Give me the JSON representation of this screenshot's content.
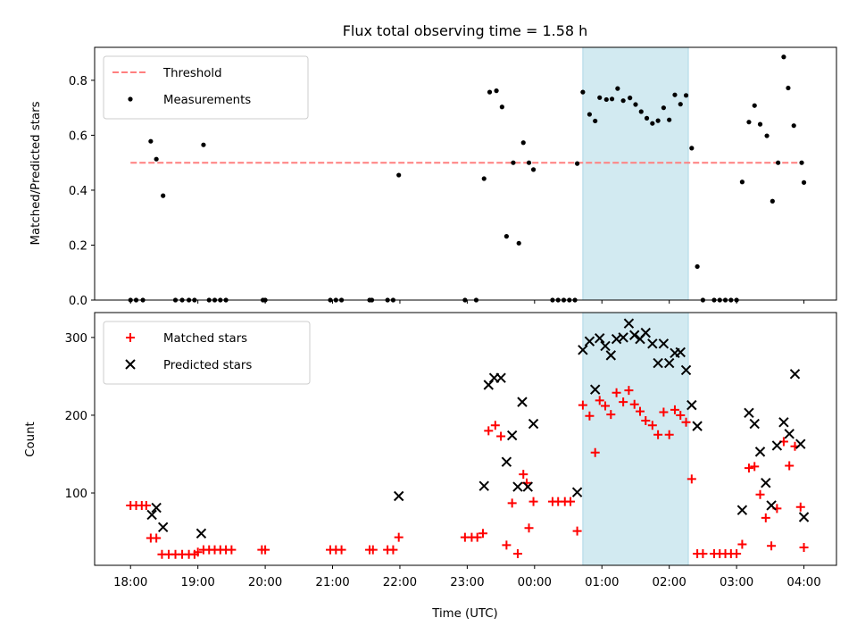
{
  "chart_data": [
    {
      "type": "scatter",
      "title": "Flux total observing time = 1.58 h",
      "xlabel": "",
      "ylabel": "Matched/Predicted stars",
      "ylim": [
        0,
        0.92
      ],
      "yticks": [
        "0.0",
        "0.2",
        "0.4",
        "0.6",
        "0.8"
      ],
      "ytick_values": [
        0,
        0.2,
        0.4,
        0.6,
        0.8
      ],
      "legend_position": "upper-left",
      "shaded_interval": [
        "00:43",
        "02:17"
      ],
      "shade_color": "#add8e6",
      "threshold": {
        "name": "Threshold",
        "value": 0.5,
        "x_start": "18:00",
        "x_end": "04:00",
        "color": "#ff7f7f",
        "style": "dashed"
      },
      "series": [
        {
          "name": "Measurements",
          "marker": "dot",
          "color": "#000000",
          "points": [
            [
              "18:00",
              0
            ],
            [
              "18:05",
              0
            ],
            [
              "18:11",
              0
            ],
            [
              "18:18",
              0.578
            ],
            [
              "18:23",
              0.513
            ],
            [
              "18:29",
              0.38
            ],
            [
              "18:40",
              0
            ],
            [
              "18:46",
              0
            ],
            [
              "18:52",
              0
            ],
            [
              "18:57",
              0
            ],
            [
              "19:05",
              0.565
            ],
            [
              "19:10",
              0
            ],
            [
              "19:15",
              0
            ],
            [
              "19:20",
              0
            ],
            [
              "19:25",
              0
            ],
            [
              "19:58",
              0
            ],
            [
              "20:00",
              0
            ],
            [
              "20:58",
              0
            ],
            [
              "21:03",
              0
            ],
            [
              "21:08",
              0
            ],
            [
              "21:33",
              0
            ],
            [
              "21:35",
              0
            ],
            [
              "21:49",
              0
            ],
            [
              "21:54",
              0
            ],
            [
              "21:59",
              0.455
            ],
            [
              "22:58",
              0
            ],
            [
              "23:08",
              0
            ],
            [
              "23:15",
              0.442
            ],
            [
              "23:20",
              0.757
            ],
            [
              "23:26",
              0.762
            ],
            [
              "23:31",
              0.703
            ],
            [
              "23:35",
              0.232
            ],
            [
              "23:41",
              0.5
            ],
            [
              "23:46",
              0.207
            ],
            [
              "23:50",
              0.573
            ],
            [
              "23:55",
              0.5
            ],
            [
              "23:59",
              0.475
            ],
            [
              "00:16",
              0
            ],
            [
              "00:21",
              0
            ],
            [
              "00:26",
              0
            ],
            [
              "00:31",
              0
            ],
            [
              "00:36",
              0
            ],
            [
              "00:38",
              0.497
            ],
            [
              "00:43",
              0.757
            ],
            [
              "00:49",
              0.676
            ],
            [
              "00:54",
              0.652
            ],
            [
              "00:58",
              0.737
            ],
            [
              "01:04",
              0.73
            ],
            [
              "01:09",
              0.732
            ],
            [
              "01:14",
              0.77
            ],
            [
              "01:19",
              0.726
            ],
            [
              "01:25",
              0.736
            ],
            [
              "01:30",
              0.712
            ],
            [
              "01:35",
              0.686
            ],
            [
              "01:40",
              0.662
            ],
            [
              "01:45",
              0.643
            ],
            [
              "01:50",
              0.653
            ],
            [
              "01:55",
              0.7
            ],
            [
              "02:00",
              0.656
            ],
            [
              "02:05",
              0.747
            ],
            [
              "02:10",
              0.713
            ],
            [
              "02:15",
              0.745
            ],
            [
              "02:20",
              0.553
            ],
            [
              "02:25",
              0.122
            ],
            [
              "02:30",
              0
            ],
            [
              "02:40",
              0
            ],
            [
              "02:45",
              0
            ],
            [
              "02:50",
              0
            ],
            [
              "02:55",
              0
            ],
            [
              "03:00",
              0
            ],
            [
              "03:05",
              0.43
            ],
            [
              "03:11",
              0.648
            ],
            [
              "03:16",
              0.708
            ],
            [
              "03:21",
              0.64
            ],
            [
              "03:27",
              0.598
            ],
            [
              "03:32",
              0.36
            ],
            [
              "03:37",
              0.5
            ],
            [
              "03:42",
              0.885
            ],
            [
              "03:46",
              0.772
            ],
            [
              "03:51",
              0.635
            ],
            [
              "03:58",
              0.5
            ],
            [
              "04:00",
              0.428
            ]
          ]
        }
      ]
    },
    {
      "type": "scatter",
      "title": "",
      "xlabel": "Time (UTC)",
      "ylabel": "Count",
      "ylim": [
        7,
        332
      ],
      "yticks": [
        "100",
        "200",
        "300"
      ],
      "ytick_values": [
        100,
        200,
        300
      ],
      "xlim": [
        "17:28",
        "04:29"
      ],
      "xticks": [
        "18:00",
        "19:00",
        "20:00",
        "21:00",
        "22:00",
        "23:00",
        "00:00",
        "01:00",
        "02:00",
        "03:00",
        "04:00"
      ],
      "legend_position": "upper-left",
      "shaded_interval": [
        "00:43",
        "02:17"
      ],
      "shade_color": "#add8e6",
      "series": [
        {
          "name": "Matched stars",
          "marker": "plus",
          "color": "#ff0000",
          "points": [
            [
              "18:00",
              84
            ],
            [
              "18:05",
              84
            ],
            [
              "18:10",
              84
            ],
            [
              "18:14",
              84
            ],
            [
              "18:18",
              42
            ],
            [
              "18:23",
              42
            ],
            [
              "18:28",
              21
            ],
            [
              "18:34",
              21
            ],
            [
              "18:40",
              21
            ],
            [
              "18:46",
              21
            ],
            [
              "18:52",
              21
            ],
            [
              "18:57",
              21
            ],
            [
              "19:00",
              24
            ],
            [
              "19:05",
              27
            ],
            [
              "19:10",
              27
            ],
            [
              "19:15",
              27
            ],
            [
              "19:20",
              27
            ],
            [
              "19:25",
              27
            ],
            [
              "19:30",
              27
            ],
            [
              "19:57",
              27
            ],
            [
              "20:00",
              27
            ],
            [
              "20:58",
              27
            ],
            [
              "21:03",
              27
            ],
            [
              "21:08",
              27
            ],
            [
              "21:33",
              27
            ],
            [
              "21:36",
              27
            ],
            [
              "21:49",
              27
            ],
            [
              "21:54",
              27
            ],
            [
              "21:59",
              43
            ],
            [
              "22:58",
              43
            ],
            [
              "23:04",
              43
            ],
            [
              "23:09",
              43
            ],
            [
              "23:14",
              48
            ],
            [
              "23:19",
              180
            ],
            [
              "23:25",
              187
            ],
            [
              "23:30",
              173
            ],
            [
              "23:35",
              33
            ],
            [
              "23:40",
              87
            ],
            [
              "23:45",
              22
            ],
            [
              "23:50",
              124
            ],
            [
              "23:53",
              113
            ],
            [
              "23:55",
              55
            ],
            [
              "23:59",
              89
            ],
            [
              "00:16",
              89
            ],
            [
              "00:21",
              89
            ],
            [
              "00:27",
              89
            ],
            [
              "00:32",
              89
            ],
            [
              "00:38",
              51
            ],
            [
              "00:43",
              213
            ],
            [
              "00:49",
              199
            ],
            [
              "00:54",
              152
            ],
            [
              "00:58",
              219
            ],
            [
              "01:03",
              212
            ],
            [
              "01:08",
              201
            ],
            [
              "01:13",
              229
            ],
            [
              "01:19",
              217
            ],
            [
              "01:24",
              232
            ],
            [
              "01:29",
              214
            ],
            [
              "01:34",
              205
            ],
            [
              "01:39",
              193
            ],
            [
              "01:45",
              187
            ],
            [
              "01:50",
              175
            ],
            [
              "01:55",
              204
            ],
            [
              "02:00",
              175
            ],
            [
              "02:05",
              207
            ],
            [
              "02:10",
              200
            ],
            [
              "02:15",
              191
            ],
            [
              "02:20",
              118
            ],
            [
              "02:25",
              22
            ],
            [
              "02:30",
              22
            ],
            [
              "02:40",
              22
            ],
            [
              "02:45",
              22
            ],
            [
              "02:50",
              22
            ],
            [
              "02:55",
              22
            ],
            [
              "03:00",
              22
            ],
            [
              "03:05",
              34
            ],
            [
              "03:11",
              132
            ],
            [
              "03:16",
              134
            ],
            [
              "03:21",
              98
            ],
            [
              "03:26",
              68
            ],
            [
              "03:31",
              32
            ],
            [
              "03:36",
              80
            ],
            [
              "03:42",
              166
            ],
            [
              "03:47",
              135
            ],
            [
              "03:52",
              160
            ],
            [
              "03:57",
              82
            ],
            [
              "04:00",
              30
            ]
          ]
        },
        {
          "name": "Predicted stars",
          "marker": "x",
          "color": "#000000",
          "points": [
            [
              "18:19",
              72
            ],
            [
              "18:23",
              81
            ],
            [
              "18:29",
              56
            ],
            [
              "19:03",
              48
            ],
            [
              "21:59",
              96
            ],
            [
              "23:15",
              109
            ],
            [
              "23:19",
              239
            ],
            [
              "23:24",
              248
            ],
            [
              "23:30",
              248
            ],
            [
              "23:35",
              140
            ],
            [
              "23:40",
              174
            ],
            [
              "23:45",
              108
            ],
            [
              "23:49",
              217
            ],
            [
              "23:54",
              108
            ],
            [
              "23:59",
              189
            ],
            [
              "00:38",
              101
            ],
            [
              "00:43",
              284
            ],
            [
              "00:49",
              295
            ],
            [
              "00:54",
              233
            ],
            [
              "00:58",
              299
            ],
            [
              "01:03",
              289
            ],
            [
              "01:08",
              277
            ],
            [
              "01:13",
              298
            ],
            [
              "01:19",
              300
            ],
            [
              "01:24",
              318
            ],
            [
              "01:29",
              303
            ],
            [
              "01:34",
              298
            ],
            [
              "01:39",
              306
            ],
            [
              "01:45",
              292
            ],
            [
              "01:50",
              267
            ],
            [
              "01:55",
              292
            ],
            [
              "02:00",
              267
            ],
            [
              "02:05",
              280
            ],
            [
              "02:10",
              281
            ],
            [
              "02:15",
              258
            ],
            [
              "02:20",
              213
            ],
            [
              "02:25",
              186
            ],
            [
              "03:05",
              78
            ],
            [
              "03:11",
              203
            ],
            [
              "03:16",
              189
            ],
            [
              "03:21",
              153
            ],
            [
              "03:26",
              113
            ],
            [
              "03:31",
              84
            ],
            [
              "03:36",
              161
            ],
            [
              "03:42",
              191
            ],
            [
              "03:47",
              176
            ],
            [
              "03:52",
              253
            ],
            [
              "03:57",
              163
            ],
            [
              "04:00",
              69
            ]
          ]
        }
      ]
    }
  ]
}
